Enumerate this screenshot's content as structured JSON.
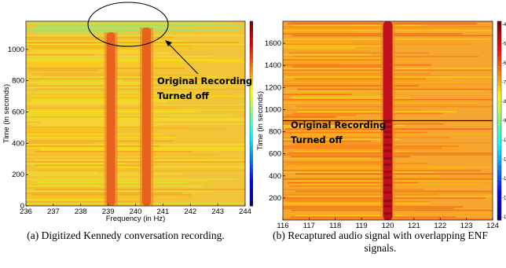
{
  "chart_data": [
    {
      "type": "heatmap",
      "title": "",
      "caption": "(a) Digitized Kennedy conversation recording.",
      "xlabel": "Frequency (in Hz)",
      "ylabel": "Time (in seconds)",
      "xlim": [
        236,
        244
      ],
      "ylim": [
        0,
        1180
      ],
      "xticks": [
        236,
        237,
        238,
        239,
        240,
        241,
        242,
        243,
        244
      ],
      "yticks": [
        0,
        200,
        400,
        600,
        800,
        1000
      ],
      "colormap": "jet",
      "background_color": "#f2c43a",
      "ridges": [
        {
          "frequency": 239.1,
          "time_range": [
            0,
            1110
          ],
          "color": "#e8621f"
        },
        {
          "frequency": 240.4,
          "time_range": [
            0,
            1140
          ],
          "color": "#e8621f"
        }
      ],
      "recording_off_time": 1100,
      "colorbar": {
        "ticks": [
          "-5",
          "-1",
          "-1",
          "-1"
        ]
      },
      "annotation": {
        "text_lines": [
          "Original Recording",
          "Turned off"
        ],
        "target": "region above ~1100 s (circled)"
      }
    },
    {
      "type": "heatmap",
      "title": "",
      "caption": "(b) Recaptured audio signal with overlapping ENF signals.",
      "xlabel": "Frequency (Hz)",
      "ylabel": "Time (in seconds)",
      "xlim": [
        116,
        124
      ],
      "ylim": [
        0,
        1800
      ],
      "xticks": [
        116,
        117,
        118,
        119,
        120,
        121,
        122,
        123,
        124
      ],
      "yticks": [
        200,
        400,
        600,
        800,
        1000,
        1200,
        1400,
        1600
      ],
      "colormap": "jet",
      "background_color": "#f5a530",
      "ridges": [
        {
          "frequency": 120.0,
          "time_range": [
            0,
            1800
          ],
          "color": "#c0101a"
        }
      ],
      "recording_off_time": 900,
      "colorbar": {
        "ticks": [
          "-4",
          "-5",
          "-6",
          "-7",
          "-8",
          "-9",
          "-10",
          "-11",
          "-12",
          "-13",
          "-14"
        ]
      },
      "annotation": {
        "text_lines": [
          "Original Recording",
          "Turned off"
        ],
        "target": "horizontal line at ~900 s"
      }
    }
  ]
}
